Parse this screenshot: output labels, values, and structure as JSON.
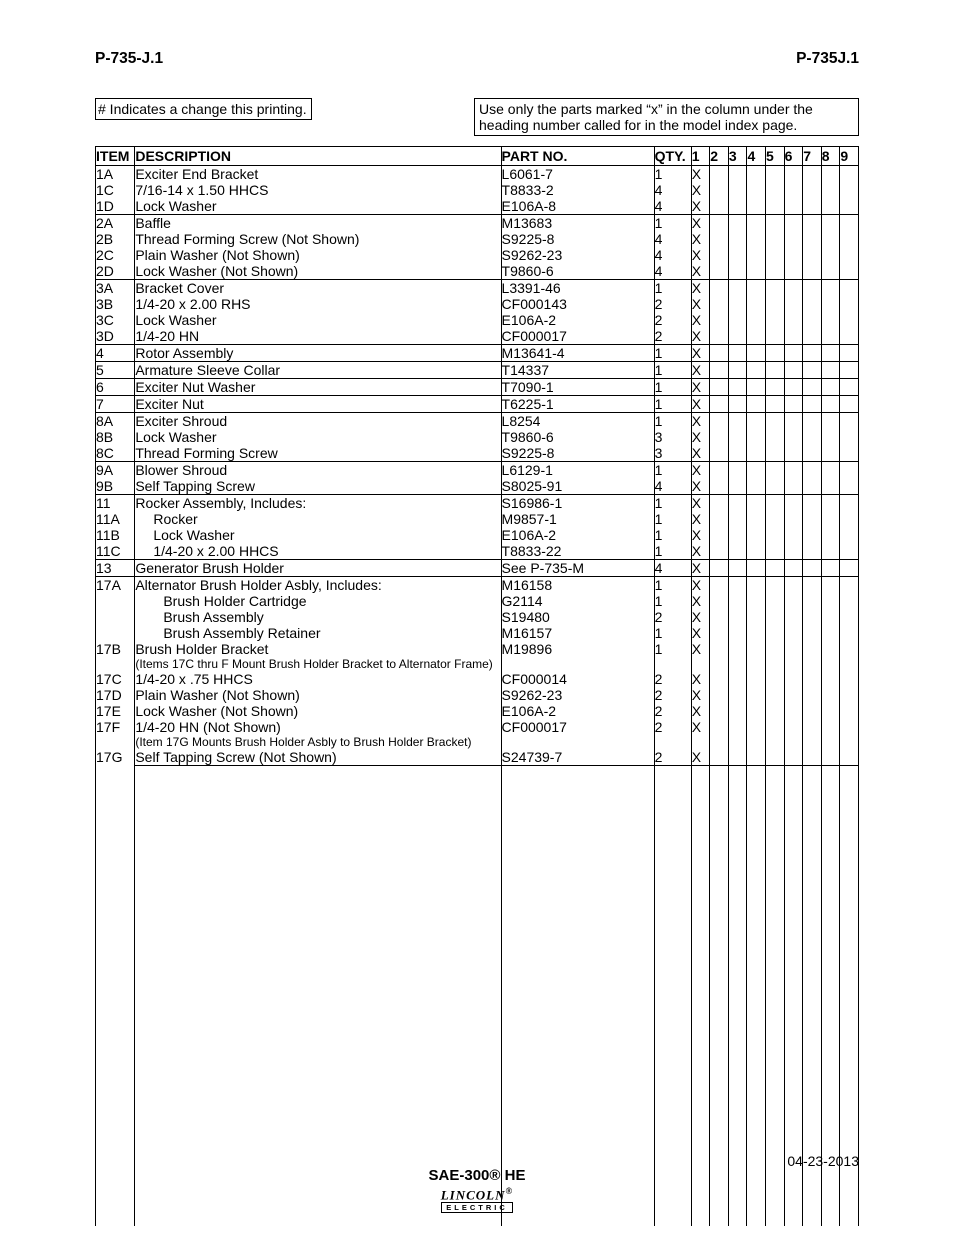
{
  "header": {
    "left": "P-735-J.1",
    "right": "P-735J.1"
  },
  "notes": {
    "left": "# Indicates a change this printing.",
    "right": "Use only the parts marked “x” in the column under the heading number called for in the model index page."
  },
  "columns": {
    "item": "ITEM",
    "description": "DESCRIPTION",
    "partno": "PART NO.",
    "qty": "QTY.",
    "x": [
      "1",
      "2",
      "3",
      "4",
      "5",
      "6",
      "7",
      "8",
      "9"
    ]
  },
  "rows": [
    {
      "item": "",
      "desc": "",
      "part": "",
      "qty": "",
      "x": [
        "",
        "",
        "",
        "",
        "",
        "",
        "",
        "",
        ""
      ],
      "sep": false,
      "indent": 0
    },
    {
      "item": "1A",
      "desc": "Exciter End Bracket",
      "part": "L6061-7",
      "qty": "1",
      "x": [
        "X",
        "",
        "",
        "",
        "",
        "",
        "",
        "",
        ""
      ],
      "sep": false,
      "indent": 0
    },
    {
      "item": "1C",
      "desc": "7/16-14 x 1.50 HHCS",
      "part": "T8833-2",
      "qty": "4",
      "x": [
        "X",
        "",
        "",
        "",
        "",
        "",
        "",
        "",
        ""
      ],
      "sep": false,
      "indent": 0
    },
    {
      "item": "1D",
      "desc": "Lock Washer",
      "part": "E106A-8",
      "qty": "4",
      "x": [
        "X",
        "",
        "",
        "",
        "",
        "",
        "",
        "",
        ""
      ],
      "sep": false,
      "indent": 0
    },
    {
      "item": "2A",
      "desc": "Baffle",
      "part": "M13683",
      "qty": "1",
      "x": [
        "X",
        "",
        "",
        "",
        "",
        "",
        "",
        "",
        ""
      ],
      "sep": true,
      "indent": 0
    },
    {
      "item": "2B",
      "desc": "Thread Forming Screw (Not Shown)",
      "part": "S9225-8",
      "qty": "4",
      "x": [
        "X",
        "",
        "",
        "",
        "",
        "",
        "",
        "",
        ""
      ],
      "sep": false,
      "indent": 0
    },
    {
      "item": "2C",
      "desc": "Plain Washer (Not Shown)",
      "part": "S9262-23",
      "qty": "4",
      "x": [
        "X",
        "",
        "",
        "",
        "",
        "",
        "",
        "",
        ""
      ],
      "sep": false,
      "indent": 0
    },
    {
      "item": "2D",
      "desc": "Lock Washer (Not Shown)",
      "part": "T9860-6",
      "qty": "4",
      "x": [
        "X",
        "",
        "",
        "",
        "",
        "",
        "",
        "",
        ""
      ],
      "sep": false,
      "indent": 0
    },
    {
      "item": "3A",
      "desc": "Bracket Cover",
      "part": "L3391-46",
      "qty": "1",
      "x": [
        "X",
        "",
        "",
        "",
        "",
        "",
        "",
        "",
        ""
      ],
      "sep": true,
      "indent": 0
    },
    {
      "item": "3B",
      "desc": "1/4-20 x 2.00 RHS",
      "part": "CF000143",
      "qty": "2",
      "x": [
        "X",
        "",
        "",
        "",
        "",
        "",
        "",
        "",
        ""
      ],
      "sep": false,
      "indent": 0
    },
    {
      "item": "3C",
      "desc": "Lock Washer",
      "part": "E106A-2",
      "qty": "2",
      "x": [
        "X",
        "",
        "",
        "",
        "",
        "",
        "",
        "",
        ""
      ],
      "sep": false,
      "indent": 0
    },
    {
      "item": "3D",
      "desc": "1/4-20 HN",
      "part": "CF000017",
      "qty": "2",
      "x": [
        "X",
        "",
        "",
        "",
        "",
        "",
        "",
        "",
        ""
      ],
      "sep": false,
      "indent": 0
    },
    {
      "item": "4",
      "desc": "Rotor Assembly",
      "part": "M13641-4",
      "qty": "1",
      "x": [
        "X",
        "",
        "",
        "",
        "",
        "",
        "",
        "",
        ""
      ],
      "sep": true,
      "indent": 0
    },
    {
      "item": "5",
      "desc": "Armature Sleeve Collar",
      "part": "T14337",
      "qty": "1",
      "x": [
        "X",
        "",
        "",
        "",
        "",
        "",
        "",
        "",
        ""
      ],
      "sep": true,
      "indent": 0
    },
    {
      "item": "6",
      "desc": "Exciter Nut Washer",
      "part": "T7090-1",
      "qty": "1",
      "x": [
        "X",
        "",
        "",
        "",
        "",
        "",
        "",
        "",
        ""
      ],
      "sep": true,
      "indent": 0
    },
    {
      "item": "7",
      "desc": "Exciter Nut",
      "part": "T6225-1",
      "qty": "1",
      "x": [
        "X",
        "",
        "",
        "",
        "",
        "",
        "",
        "",
        ""
      ],
      "sep": true,
      "indent": 0
    },
    {
      "item": "8A",
      "desc": "Exciter Shroud",
      "part": "L8254",
      "qty": "1",
      "x": [
        "X",
        "",
        "",
        "",
        "",
        "",
        "",
        "",
        ""
      ],
      "sep": true,
      "indent": 0
    },
    {
      "item": "8B",
      "desc": "Lock Washer",
      "part": "T9860-6",
      "qty": "3",
      "x": [
        "X",
        "",
        "",
        "",
        "",
        "",
        "",
        "",
        ""
      ],
      "sep": false,
      "indent": 0
    },
    {
      "item": "8C",
      "desc": "Thread Forming Screw",
      "part": "S9225-8",
      "qty": "3",
      "x": [
        "X",
        "",
        "",
        "",
        "",
        "",
        "",
        "",
        ""
      ],
      "sep": false,
      "indent": 0
    },
    {
      "item": "9A",
      "desc": "Blower Shroud",
      "part": "L6129-1",
      "qty": "1",
      "x": [
        "X",
        "",
        "",
        "",
        "",
        "",
        "",
        "",
        ""
      ],
      "sep": true,
      "indent": 0
    },
    {
      "item": "9B",
      "desc": "Self Tapping Screw",
      "part": "S8025-91",
      "qty": "4",
      "x": [
        "X",
        "",
        "",
        "",
        "",
        "",
        "",
        "",
        ""
      ],
      "sep": false,
      "indent": 0
    },
    {
      "item": "11",
      "desc": "Rocker Assembly, Includes:",
      "part": "S16986-1",
      "qty": "1",
      "x": [
        "X",
        "",
        "",
        "",
        "",
        "",
        "",
        "",
        ""
      ],
      "sep": true,
      "indent": 0
    },
    {
      "item": "11A",
      "desc": "Rocker",
      "part": "M9857-1",
      "qty": "1",
      "x": [
        "X",
        "",
        "",
        "",
        "",
        "",
        "",
        "",
        ""
      ],
      "sep": false,
      "indent": 1
    },
    {
      "item": "11B",
      "desc": "Lock Washer",
      "part": "E106A-2",
      "qty": "1",
      "x": [
        "X",
        "",
        "",
        "",
        "",
        "",
        "",
        "",
        ""
      ],
      "sep": false,
      "indent": 1
    },
    {
      "item": "11C",
      "desc": "1/4-20 x 2.00 HHCS",
      "part": "T8833-22",
      "qty": "1",
      "x": [
        "X",
        "",
        "",
        "",
        "",
        "",
        "",
        "",
        ""
      ],
      "sep": false,
      "indent": 1
    },
    {
      "item": "13",
      "desc": "Generator Brush Holder",
      "part": "See P-735-M",
      "qty": "4",
      "x": [
        "X",
        "",
        "",
        "",
        "",
        "",
        "",
        "",
        ""
      ],
      "sep": true,
      "indent": 0
    },
    {
      "item": "17A",
      "desc": "Alternator Brush Holder Asbly, Includes:",
      "part": "M16158",
      "qty": "1",
      "x": [
        "X",
        "",
        "",
        "",
        "",
        "",
        "",
        "",
        ""
      ],
      "sep": true,
      "indent": 0
    },
    {
      "item": "",
      "desc": "Brush Holder Cartridge",
      "part": "G2114",
      "qty": "1",
      "x": [
        "X",
        "",
        "",
        "",
        "",
        "",
        "",
        "",
        ""
      ],
      "sep": false,
      "indent": 2
    },
    {
      "item": "",
      "desc": "Brush Assembly",
      "part": "S19480",
      "qty": "2",
      "x": [
        "X",
        "",
        "",
        "",
        "",
        "",
        "",
        "",
        ""
      ],
      "sep": false,
      "indent": 2
    },
    {
      "item": "",
      "desc": "Brush Assembly Retainer",
      "part": "M16157",
      "qty": "1",
      "x": [
        "X",
        "",
        "",
        "",
        "",
        "",
        "",
        "",
        ""
      ],
      "sep": false,
      "indent": 2
    },
    {
      "item": "17B",
      "desc": "Brush Holder Bracket",
      "part": "M19896",
      "qty": "1",
      "x": [
        "X",
        "",
        "",
        "",
        "",
        "",
        "",
        "",
        ""
      ],
      "sep": false,
      "indent": 0
    },
    {
      "item": "",
      "desc": "(Items 17C thru F Mount Brush Holder Bracket to Alternator Frame)",
      "part": "",
      "qty": "",
      "x": [
        "",
        "",
        "",
        "",
        "",
        "",
        "",
        "",
        ""
      ],
      "sep": false,
      "indent": 0,
      "small": true
    },
    {
      "item": "17C",
      "desc": "1/4-20 x .75 HHCS",
      "part": "CF000014",
      "qty": "2",
      "x": [
        "X",
        "",
        "",
        "",
        "",
        "",
        "",
        "",
        ""
      ],
      "sep": false,
      "indent": 0
    },
    {
      "item": "17D",
      "desc": "Plain Washer (Not Shown)",
      "part": "S9262-23",
      "qty": "2",
      "x": [
        "X",
        "",
        "",
        "",
        "",
        "",
        "",
        "",
        ""
      ],
      "sep": false,
      "indent": 0
    },
    {
      "item": "17E",
      "desc": "Lock Washer (Not Shown)",
      "part": "E106A-2",
      "qty": "2",
      "x": [
        "X",
        "",
        "",
        "",
        "",
        "",
        "",
        "",
        ""
      ],
      "sep": false,
      "indent": 0
    },
    {
      "item": "17F",
      "desc": "1/4-20 HN (Not Shown)",
      "part": "CF000017",
      "qty": "2",
      "x": [
        "X",
        "",
        "",
        "",
        "",
        "",
        "",
        "",
        ""
      ],
      "sep": false,
      "indent": 0
    },
    {
      "item": "",
      "desc": "(Item 17G Mounts Brush Holder Asbly to Brush Holder Bracket)",
      "part": "",
      "qty": "",
      "x": [
        "",
        "",
        "",
        "",
        "",
        "",
        "",
        "",
        ""
      ],
      "sep": false,
      "indent": 0,
      "small": true
    },
    {
      "item": "17G",
      "desc": "Self Tapping Screw (Not Shown)",
      "part": "S24739-7",
      "qty": "2",
      "x": [
        "X",
        "",
        "",
        "",
        "",
        "",
        "",
        "",
        ""
      ],
      "sep": false,
      "indent": 0,
      "lastsep": true
    }
  ],
  "footer": {
    "model": "SAE-300® HE",
    "date": "04-23-2013",
    "logo_top": "LINCOLN",
    "logo_bot": "ELECTRIC"
  }
}
